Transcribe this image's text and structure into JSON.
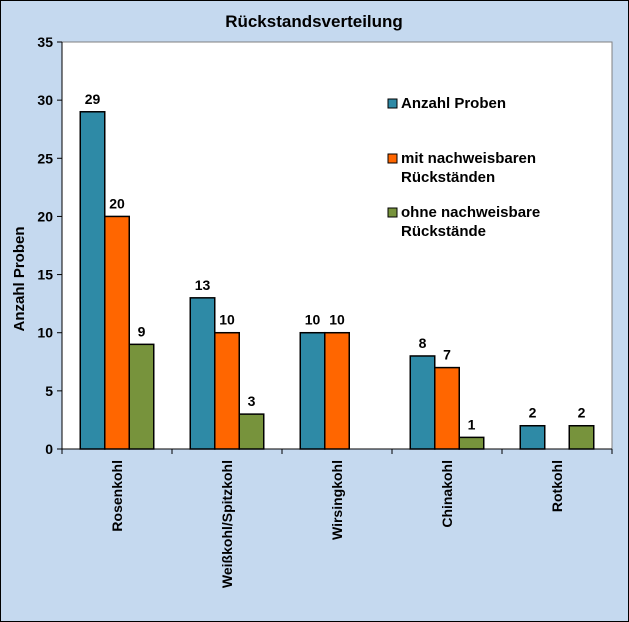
{
  "chart_data": {
    "type": "bar",
    "title": "Rückstandsverteilung",
    "xlabel": "",
    "ylabel": "Anzahl Proben",
    "ylim": [
      0,
      35
    ],
    "yticks": [
      0,
      5,
      10,
      15,
      20,
      25,
      30,
      35
    ],
    "grid": false,
    "legend_position": "top-right",
    "categories": [
      "Rosenkohl",
      "Weißkohl/Spitzkohl",
      "Wirsingkohl",
      "Chinakohl",
      "Rotkohl"
    ],
    "series": [
      {
        "name": "Anzahl Proben",
        "color": "#2e8aa6",
        "values": [
          29,
          13,
          10,
          8,
          2
        ]
      },
      {
        "name": "mit nachweisbaren Rückständen",
        "color": "#ff6600",
        "values": [
          20,
          10,
          10,
          7,
          null
        ]
      },
      {
        "name": "ohne nachweisbare Rückstände",
        "color": "#77933c",
        "values": [
          9,
          3,
          null,
          1,
          2
        ]
      }
    ],
    "plot_background": "#ffffff",
    "chart_background": "#c5d9ef"
  }
}
